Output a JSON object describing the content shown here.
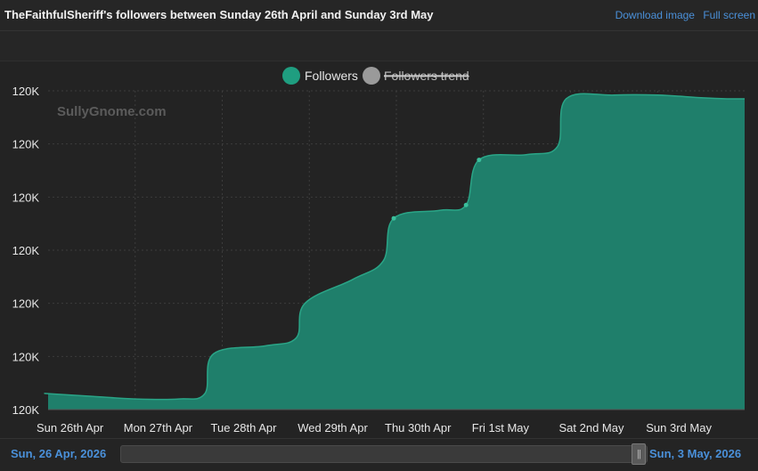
{
  "header": {
    "title": "TheFaithfulSheriff's followers between Sunday 26th April and Sunday 3rd May",
    "download_label": "Download image",
    "fullscreen_label": "Full screen"
  },
  "watermark": "SullyGnome.com",
  "legend": [
    {
      "label": "Followers",
      "color": "#1f9e80",
      "active": true
    },
    {
      "label": "Followers trend",
      "color": "#9a9a9a",
      "active": false
    }
  ],
  "footer": {
    "start_date": "Sun, 26 Apr, 2026",
    "end_date": "Sun, 3 May, 2026",
    "slider_grip": "||"
  },
  "chart_data": {
    "type": "area",
    "title": "TheFaithfulSheriff's followers between Sunday 26th April and Sunday 3rd May",
    "x_categories": [
      "Sun 26th Apr",
      "Mon 27th Apr",
      "Tue 28th Apr",
      "Wed 29th Apr",
      "Thu 30th Apr",
      "Fri 1st May",
      "Sat 2nd May",
      "Sun 3rd May"
    ],
    "y_tick_labels": [
      "120K",
      "120K",
      "120K",
      "120K",
      "120K",
      "120K",
      "120K"
    ],
    "ylim": [
      0,
      6
    ],
    "grid": true,
    "legend_position": "top-center",
    "area_color": "#1f7f6b",
    "line_color": "#2aa587",
    "series": [
      {
        "name": "Followers",
        "x": [
          0.0,
          0.5,
          1.0,
          1.5,
          1.8,
          1.9,
          2.5,
          2.85,
          2.95,
          3.5,
          3.85,
          3.97,
          4.5,
          4.8,
          4.95,
          5.5,
          5.85,
          5.95,
          6.5,
          7.0,
          7.5,
          7.8
        ],
        "y": [
          0.3,
          0.25,
          0.2,
          0.2,
          0.3,
          1.05,
          1.2,
          1.35,
          2.0,
          2.45,
          2.8,
          3.6,
          3.75,
          3.85,
          4.7,
          4.8,
          4.95,
          5.85,
          5.92,
          5.92,
          5.87,
          5.85
        ]
      }
    ]
  }
}
